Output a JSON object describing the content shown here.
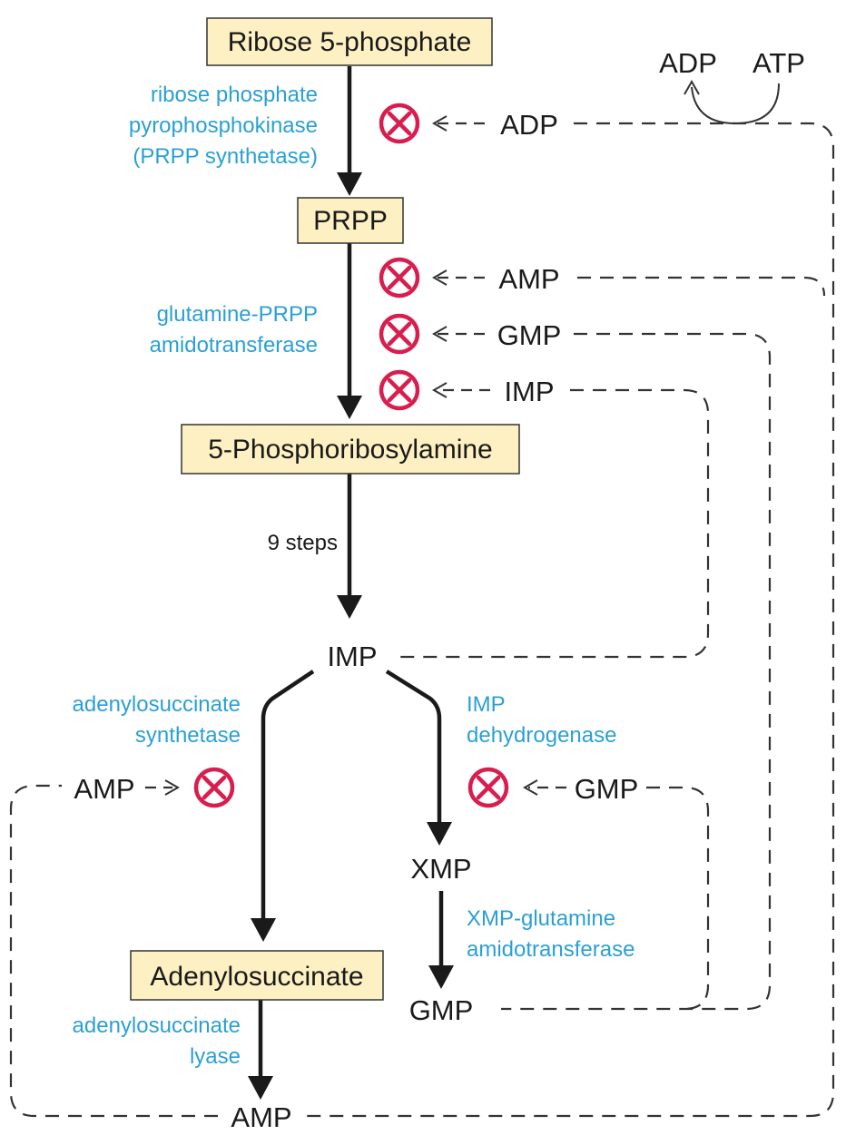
{
  "nodes": {
    "ribose5p": "Ribose 5-phosphate",
    "prpp": "PRPP",
    "phosphoribosylamine": "5-Phosphoribosylamine",
    "imp": "IMP",
    "adenylosuccinate": "Adenylosuccinate",
    "amp": "AMP",
    "xmp": "XMP",
    "gmp": "GMP"
  },
  "enzymes": {
    "prpp_synthetase": [
      "ribose phosphate",
      "pyrophosphokinase",
      "(PRPP synthetase)"
    ],
    "amidotransferase": [
      "glutamine-PRPP",
      "amidotransferase"
    ],
    "steps": "9 steps",
    "adenylosuccinate_synthetase": [
      "adenylosuccinate",
      "synthetase"
    ],
    "imp_dehydrogenase": [
      "IMP",
      "dehydrogenase"
    ],
    "xmp_glutamine": [
      "XMP-glutamine",
      "amidotransferase"
    ],
    "adenylosuccinate_lyase": [
      "adenylosuccinate",
      "lyase"
    ]
  },
  "inhibitors": {
    "adp": "ADP",
    "amp": "AMP",
    "gmp": "GMP",
    "imp": "IMP",
    "amp_branch": "AMP",
    "gmp_branch": "GMP"
  },
  "energy": {
    "adp": "ADP",
    "atp": "ATP"
  },
  "colors": {
    "enzyme": "#2ba0d4",
    "inhibition": "#d81e4e",
    "box": "#fdf0c2"
  }
}
